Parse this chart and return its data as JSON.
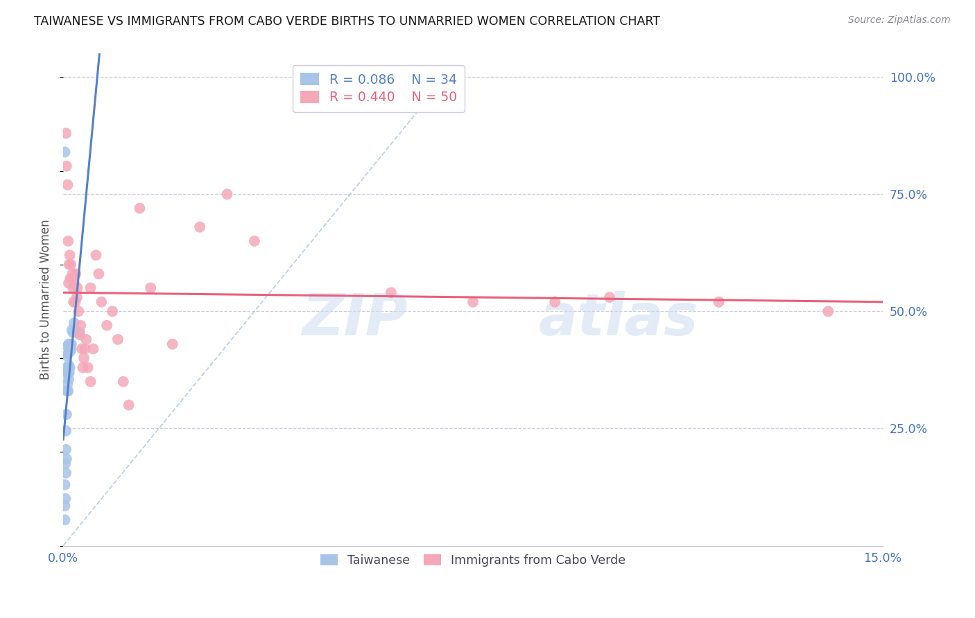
{
  "title": "TAIWANESE VS IMMIGRANTS FROM CABO VERDE BIRTHS TO UNMARRIED WOMEN CORRELATION CHART",
  "source": "Source: ZipAtlas.com",
  "ylabel": "Births to Unmarried Women",
  "xlim": [
    0.0,
    0.15
  ],
  "ylim": [
    0.0,
    1.05
  ],
  "taiwan_color": "#a8c4e8",
  "cabo_verde_color": "#f4a8b8",
  "taiwan_line_color": "#5580c8",
  "cabo_verde_line_color": "#e8607a",
  "dashed_line_color": "#b0c8e0",
  "taiwan_R": 0.086,
  "taiwan_N": 34,
  "cabo_verde_R": 0.44,
  "cabo_verde_N": 50,
  "taiwan_scatter_x": [
    0.0003,
    0.0003,
    0.0003,
    0.0004,
    0.0004,
    0.0005,
    0.0005,
    0.0005,
    0.0006,
    0.0006,
    0.0007,
    0.0007,
    0.0007,
    0.0008,
    0.0008,
    0.0008,
    0.0009,
    0.0009,
    0.0009,
    0.001,
    0.001,
    0.001,
    0.0011,
    0.0011,
    0.0012,
    0.0012,
    0.0013,
    0.0014,
    0.0015,
    0.0016,
    0.0018,
    0.002,
    0.003,
    0.0003
  ],
  "taiwan_scatter_y": [
    0.055,
    0.085,
    0.13,
    0.1,
    0.175,
    0.155,
    0.205,
    0.245,
    0.185,
    0.28,
    0.33,
    0.37,
    0.405,
    0.345,
    0.38,
    0.425,
    0.33,
    0.365,
    0.41,
    0.355,
    0.385,
    0.43,
    0.37,
    0.415,
    0.38,
    0.43,
    0.415,
    0.42,
    0.43,
    0.46,
    0.455,
    0.475,
    0.455,
    0.84
  ],
  "cabo_verde_scatter_x": [
    0.0005,
    0.0006,
    0.0008,
    0.0009,
    0.001,
    0.0011,
    0.0012,
    0.0013,
    0.0014,
    0.0015,
    0.0017,
    0.0018,
    0.0019,
    0.002,
    0.0022,
    0.0023,
    0.0025,
    0.0026,
    0.0028,
    0.003,
    0.0032,
    0.0034,
    0.0036,
    0.0038,
    0.004,
    0.0042,
    0.0045,
    0.005,
    0.0055,
    0.006,
    0.0065,
    0.007,
    0.008,
    0.009,
    0.01,
    0.011,
    0.012,
    0.014,
    0.016,
    0.02,
    0.025,
    0.03,
    0.035,
    0.005,
    0.06,
    0.075,
    0.09,
    0.1,
    0.12,
    0.14
  ],
  "cabo_verde_scatter_y": [
    0.88,
    0.81,
    0.77,
    0.65,
    0.56,
    0.6,
    0.62,
    0.57,
    0.6,
    0.57,
    0.58,
    0.55,
    0.52,
    0.56,
    0.52,
    0.58,
    0.53,
    0.55,
    0.5,
    0.45,
    0.47,
    0.42,
    0.38,
    0.4,
    0.42,
    0.44,
    0.38,
    0.55,
    0.42,
    0.62,
    0.58,
    0.52,
    0.47,
    0.5,
    0.44,
    0.35,
    0.3,
    0.72,
    0.55,
    0.43,
    0.68,
    0.75,
    0.65,
    0.35,
    0.54,
    0.52,
    0.52,
    0.53,
    0.52,
    0.5
  ],
  "watermark_zip": "ZIP",
  "watermark_atlas": "atlas",
  "background_color": "#ffffff",
  "grid_color": "#ccccdd",
  "tick_label_color": "#4472c4",
  "title_color": "#1a1a1a",
  "ylabel_color": "#555555"
}
